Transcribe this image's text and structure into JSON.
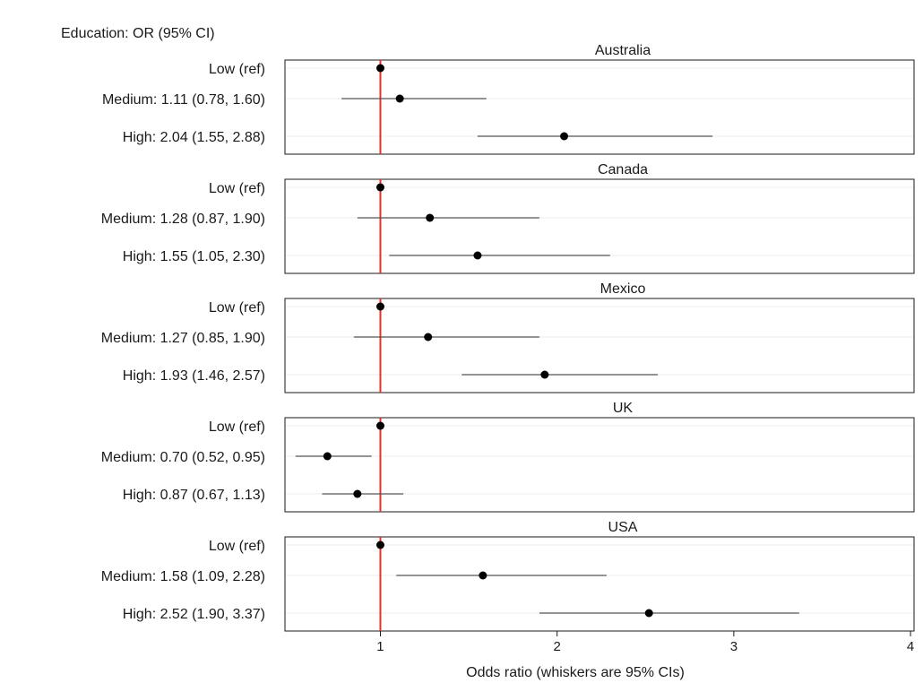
{
  "chart_data": {
    "type": "forest",
    "header": "Education: OR (95% CI)",
    "xlabel": "Odds ratio (whiskers are 95% CIs)",
    "xlim": [
      0.46,
      4.02
    ],
    "xticks": [
      1,
      2,
      3,
      4
    ],
    "reference_value": 1,
    "colors": {
      "reference_line": "#e8302a",
      "point": "#000000",
      "whisker": "#555555",
      "frame": "#1a1a1a",
      "grid": "#ececec"
    },
    "panels": [
      {
        "title": "Australia",
        "rows": [
          {
            "label": "Low (ref)",
            "or": 1,
            "lo": null,
            "hi": null
          },
          {
            "label": "Medium: 1.11 (0.78, 1.60)",
            "or": 1.11,
            "lo": 0.78,
            "hi": 1.6
          },
          {
            "label": "High: 2.04 (1.55, 2.88)",
            "or": 2.04,
            "lo": 1.55,
            "hi": 2.88
          }
        ]
      },
      {
        "title": "Canada",
        "rows": [
          {
            "label": "Low (ref)",
            "or": 1,
            "lo": null,
            "hi": null
          },
          {
            "label": "Medium: 1.28 (0.87, 1.90)",
            "or": 1.28,
            "lo": 0.87,
            "hi": 1.9
          },
          {
            "label": "High: 1.55 (1.05, 2.30)",
            "or": 1.55,
            "lo": 1.05,
            "hi": 2.3
          }
        ]
      },
      {
        "title": "Mexico",
        "rows": [
          {
            "label": "Low (ref)",
            "or": 1,
            "lo": null,
            "hi": null
          },
          {
            "label": "Medium: 1.27 (0.85, 1.90)",
            "or": 1.27,
            "lo": 0.85,
            "hi": 1.9
          },
          {
            "label": "High: 1.93 (1.46, 2.57)",
            "or": 1.93,
            "lo": 1.46,
            "hi": 2.57
          }
        ]
      },
      {
        "title": "UK",
        "rows": [
          {
            "label": "Low (ref)",
            "or": 1,
            "lo": null,
            "hi": null
          },
          {
            "label": "Medium: 0.70 (0.52, 0.95)",
            "or": 0.7,
            "lo": 0.52,
            "hi": 0.95
          },
          {
            "label": "High: 0.87 (0.67, 1.13)",
            "or": 0.87,
            "lo": 0.67,
            "hi": 1.13
          }
        ]
      },
      {
        "title": "USA",
        "rows": [
          {
            "label": "Low (ref)",
            "or": 1,
            "lo": null,
            "hi": null
          },
          {
            "label": "Medium: 1.58 (1.09, 2.28)",
            "or": 1.58,
            "lo": 1.09,
            "hi": 2.28
          },
          {
            "label": "High: 2.52 (1.90, 3.37)",
            "or": 2.52,
            "lo": 1.9,
            "hi": 3.37
          }
        ]
      }
    ]
  }
}
